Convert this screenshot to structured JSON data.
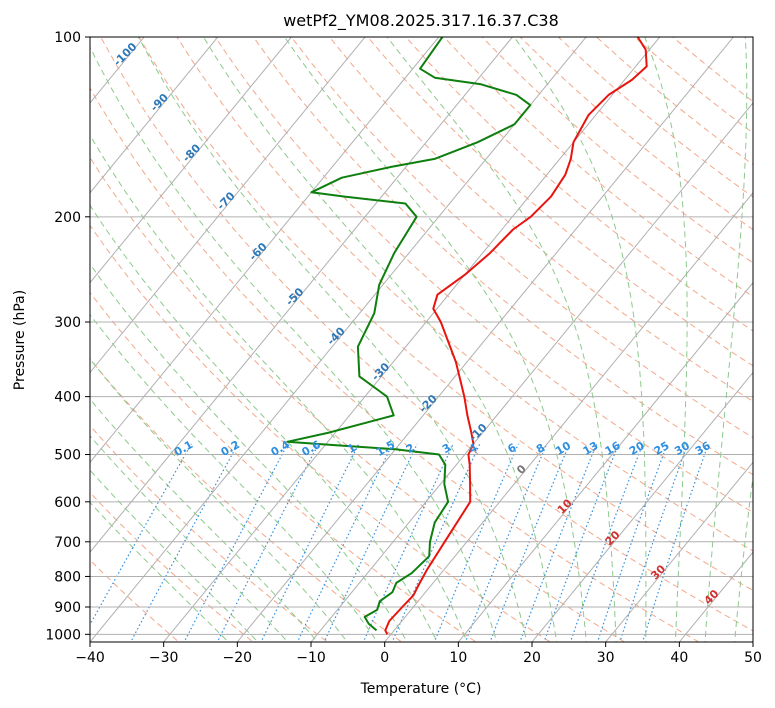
{
  "chart_data": {
    "type": "line",
    "title": "wetPf2_YM08.2025.317.16.37.C38",
    "xlabel": "Temperature (°C)",
    "ylabel": "Pressure (hPa)",
    "xlim": [
      -40,
      50
    ],
    "ylim": [
      1030,
      100
    ],
    "y_scale": "log",
    "x_ticks": [
      "−40",
      "−30",
      "−20",
      "−10",
      "0",
      "10",
      "20",
      "30",
      "40",
      "50"
    ],
    "x_tick_values": [
      -40,
      -30,
      -20,
      -10,
      0,
      10,
      20,
      30,
      40,
      50
    ],
    "y_ticks": [
      "100",
      "200",
      "300",
      "400",
      "500",
      "600",
      "700",
      "800",
      "900",
      "1000"
    ],
    "y_tick_values": [
      100,
      200,
      300,
      400,
      500,
      600,
      700,
      800,
      900,
      1000
    ],
    "grid": true,
    "skew": true,
    "colors": {
      "temperature": "#e8150f",
      "dewpoint": "#0e7f0e",
      "isotherm": "#b0b0b0",
      "dry_adiabat": "#f2a88a",
      "moist_adiabat": "#8cc98c",
      "mixing_ratio": "#2f8fe0",
      "isotherm_label": "#2f78b8",
      "hgz_label": "#d33030"
    },
    "series": [
      {
        "name": "",
        "color": "#e8150f",
        "points": [
          {
            "p": 1000,
            "t": -0.5
          },
          {
            "p": 985,
            "t": -1.2
          },
          {
            "p": 950,
            "t": -1.7
          },
          {
            "p": 900,
            "t": -1.5
          },
          {
            "p": 860,
            "t": -1.3
          },
          {
            "p": 830,
            "t": -1.7
          },
          {
            "p": 780,
            "t": -2.3
          },
          {
            "p": 700,
            "t": -3.0
          },
          {
            "p": 600,
            "t": -4.0
          },
          {
            "p": 560,
            "t": -6.0
          },
          {
            "p": 520,
            "t": -8.2
          },
          {
            "p": 500,
            "t": -9.5
          },
          {
            "p": 480,
            "t": -10.0
          },
          {
            "p": 460,
            "t": -11.5
          },
          {
            "p": 430,
            "t": -14.0
          },
          {
            "p": 400,
            "t": -16.5
          },
          {
            "p": 350,
            "t": -21.5
          },
          {
            "p": 300,
            "t": -28.0
          },
          {
            "p": 285,
            "t": -30.5
          },
          {
            "p": 270,
            "t": -31.5
          },
          {
            "p": 250,
            "t": -30.0
          },
          {
            "p": 230,
            "t": -29.0
          },
          {
            "p": 210,
            "t": -28.5
          },
          {
            "p": 200,
            "t": -27.5
          },
          {
            "p": 185,
            "t": -27.0
          },
          {
            "p": 170,
            "t": -27.5
          },
          {
            "p": 160,
            "t": -28.5
          },
          {
            "p": 150,
            "t": -30.0
          },
          {
            "p": 135,
            "t": -31.0
          },
          {
            "p": 125,
            "t": -30.5
          },
          {
            "p": 118,
            "t": -29.0
          },
          {
            "p": 112,
            "t": -28.5
          },
          {
            "p": 105,
            "t": -30.5
          },
          {
            "p": 100,
            "t": -33.0
          }
        ]
      },
      {
        "name": "",
        "color": "#0e7f0e",
        "points": [
          {
            "p": 985,
            "t": -2.4
          },
          {
            "p": 960,
            "t": -4.2
          },
          {
            "p": 935,
            "t": -5.5
          },
          {
            "p": 910,
            "t": -4.6
          },
          {
            "p": 880,
            "t": -5.2
          },
          {
            "p": 850,
            "t": -4.5
          },
          {
            "p": 820,
            "t": -5.0
          },
          {
            "p": 790,
            "t": -4.0
          },
          {
            "p": 740,
            "t": -3.5
          },
          {
            "p": 700,
            "t": -5.0
          },
          {
            "p": 650,
            "t": -6.5
          },
          {
            "p": 600,
            "t": -7.0
          },
          {
            "p": 560,
            "t": -9.5
          },
          {
            "p": 520,
            "t": -11.5
          },
          {
            "p": 500,
            "t": -13.5
          },
          {
            "p": 490,
            "t": -20.0
          },
          {
            "p": 482,
            "t": -29.0
          },
          {
            "p": 476,
            "t": -35.5
          },
          {
            "p": 460,
            "t": -31.0
          },
          {
            "p": 430,
            "t": -24.0
          },
          {
            "p": 400,
            "t": -27.0
          },
          {
            "p": 370,
            "t": -33.0
          },
          {
            "p": 330,
            "t": -36.5
          },
          {
            "p": 290,
            "t": -38.0
          },
          {
            "p": 260,
            "t": -40.5
          },
          {
            "p": 230,
            "t": -42.0
          },
          {
            "p": 200,
            "t": -43.0
          },
          {
            "p": 190,
            "t": -46.0
          },
          {
            "p": 185,
            "t": -55.0
          },
          {
            "p": 182,
            "t": -60.0
          },
          {
            "p": 172,
            "t": -57.5
          },
          {
            "p": 165,
            "t": -52.0
          },
          {
            "p": 160,
            "t": -47.0
          },
          {
            "p": 150,
            "t": -43.0
          },
          {
            "p": 140,
            "t": -40.0
          },
          {
            "p": 130,
            "t": -40.0
          },
          {
            "p": 125,
            "t": -43.0
          },
          {
            "p": 120,
            "t": -49.0
          },
          {
            "p": 117,
            "t": -56.0
          },
          {
            "p": 113,
            "t": -59.0
          },
          {
            "p": 100,
            "t": -59.5
          }
        ]
      }
    ],
    "isotherm_labels": [
      {
        "text": "-100",
        "t": -100,
        "p": 108
      },
      {
        "text": "-90",
        "t": -90,
        "p": 130
      },
      {
        "text": "-80",
        "t": -80,
        "p": 158
      },
      {
        "text": "-70",
        "t": -70,
        "p": 190
      },
      {
        "text": "-60",
        "t": -60,
        "p": 231
      },
      {
        "text": "-50",
        "t": -50,
        "p": 275
      },
      {
        "text": "-40",
        "t": -40,
        "p": 320
      },
      {
        "text": "-30",
        "t": -30,
        "p": 367
      },
      {
        "text": "-20",
        "t": -20,
        "p": 415
      },
      {
        "text": "-10",
        "t": -10,
        "p": 464
      }
    ],
    "hgz_labels": [
      {
        "text": "0",
        "t": 0,
        "p": 535,
        "color": "#777777"
      },
      {
        "text": "10",
        "t": 10,
        "p": 617,
        "color": "#d33030"
      },
      {
        "text": "20",
        "t": 20,
        "p": 697,
        "color": "#d33030"
      },
      {
        "text": "30",
        "t": 30,
        "p": 795,
        "color": "#d33030"
      },
      {
        "text": "40",
        "t": 40,
        "p": 875,
        "color": "#d33030"
      }
    ],
    "mixing_ratio_labels": [
      "0.1",
      "0.2",
      "0.4",
      "0.6",
      "1",
      "1.5",
      "2",
      "3",
      "4",
      "6",
      "8",
      "10",
      "13",
      "16",
      "20",
      "25",
      "30",
      "36"
    ],
    "mixing_ratio_values": [
      0.1,
      0.2,
      0.4,
      0.6,
      1,
      1.5,
      2,
      3,
      4,
      6,
      8,
      10,
      13,
      16,
      20,
      25,
      30,
      36
    ]
  }
}
